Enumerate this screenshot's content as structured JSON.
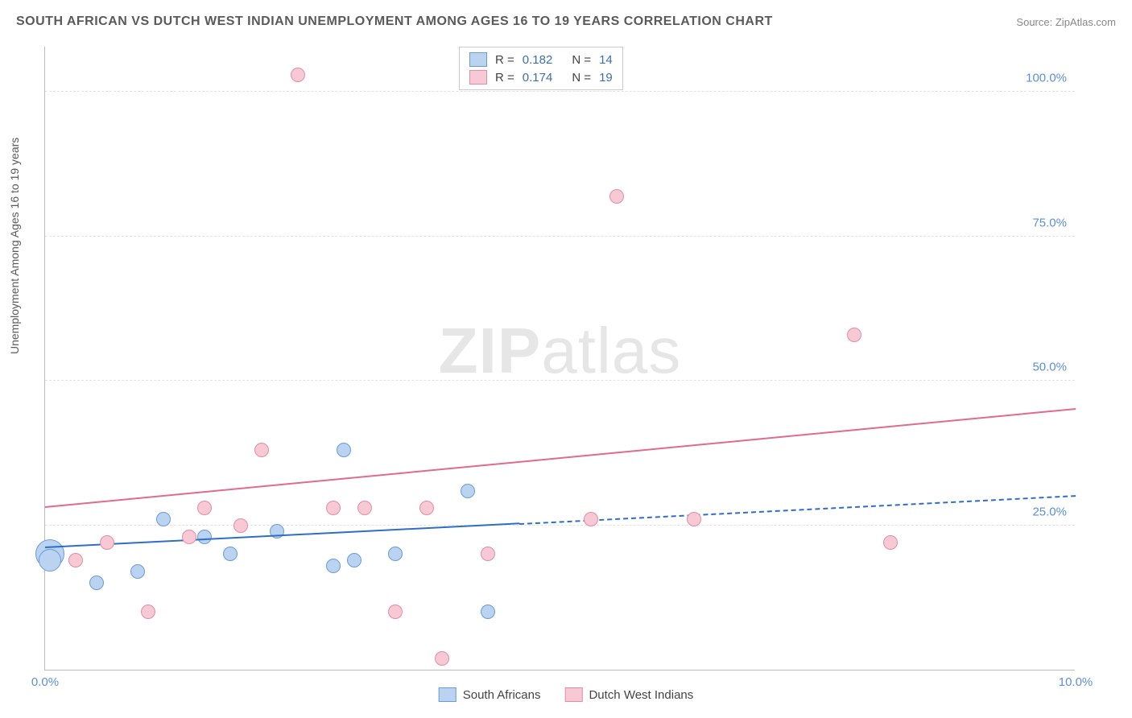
{
  "title": "SOUTH AFRICAN VS DUTCH WEST INDIAN UNEMPLOYMENT AMONG AGES 16 TO 19 YEARS CORRELATION CHART",
  "source": {
    "label": "Source:",
    "site": "ZipAtlas.com"
  },
  "ylabel": "Unemployment Among Ages 16 to 19 years",
  "watermark": {
    "bold": "ZIP",
    "rest": "atlas"
  },
  "chart": {
    "type": "scatter-correlation",
    "xlim": [
      0,
      10
    ],
    "ylim": [
      0,
      108
    ],
    "x_ticks": [
      {
        "v": 0,
        "label": "0.0%"
      },
      {
        "v": 10,
        "label": "10.0%"
      }
    ],
    "y_ticks": [
      {
        "v": 25,
        "label": "25.0%"
      },
      {
        "v": 50,
        "label": "50.0%"
      },
      {
        "v": 75,
        "label": "75.0%"
      },
      {
        "v": 100,
        "label": "100.0%"
      }
    ],
    "grid_color": "#e2e2e2",
    "axis_color": "#bbbbbb",
    "background_color": "#ffffff",
    "tick_label_color": "#5b8fd6",
    "title_color": "#5a5a5a",
    "title_fontsize": 16,
    "label_fontsize": 14,
    "tick_fontsize": 15,
    "watermark_color": "#e6e6e6",
    "watermark_fontsize": 80,
    "default_point_radius": 9,
    "series": [
      {
        "id": "south_africans",
        "label": "South Africans",
        "fill": "#b9d3f0",
        "stroke": "#6a9bd8",
        "trend_color": "#2f6ec4",
        "trend_width": 2.5,
        "trend": {
          "x0": 0,
          "y0": 21,
          "x1": 10,
          "y1": 30,
          "solid_until_x": 4.6
        },
        "R": "0.182",
        "N": "14",
        "points": [
          {
            "x": 0.05,
            "y": 20,
            "r": 18
          },
          {
            "x": 0.05,
            "y": 19,
            "r": 14
          },
          {
            "x": 0.5,
            "y": 15
          },
          {
            "x": 0.9,
            "y": 17
          },
          {
            "x": 1.15,
            "y": 26
          },
          {
            "x": 1.55,
            "y": 23
          },
          {
            "x": 1.8,
            "y": 20
          },
          {
            "x": 2.25,
            "y": 24
          },
          {
            "x": 2.8,
            "y": 18
          },
          {
            "x": 2.9,
            "y": 38
          },
          {
            "x": 3.0,
            "y": 19
          },
          {
            "x": 3.4,
            "y": 20
          },
          {
            "x": 4.1,
            "y": 31
          },
          {
            "x": 4.3,
            "y": 10
          }
        ]
      },
      {
        "id": "dutch_west_indians",
        "label": "Dutch West Indians",
        "fill": "#f6c9d4",
        "stroke": "#e48ca4",
        "trend_color": "#e06b8b",
        "trend_width": 2.5,
        "trend": {
          "x0": 0,
          "y0": 28,
          "x1": 10,
          "y1": 45,
          "solid_until_x": 10
        },
        "R": "0.174",
        "N": "19",
        "points": [
          {
            "x": 0.3,
            "y": 19
          },
          {
            "x": 0.6,
            "y": 22
          },
          {
            "x": 1.0,
            "y": 10
          },
          {
            "x": 1.4,
            "y": 23
          },
          {
            "x": 1.55,
            "y": 28
          },
          {
            "x": 1.9,
            "y": 25
          },
          {
            "x": 2.1,
            "y": 38
          },
          {
            "x": 2.45,
            "y": 103
          },
          {
            "x": 2.8,
            "y": 28
          },
          {
            "x": 3.1,
            "y": 28
          },
          {
            "x": 3.4,
            "y": 10
          },
          {
            "x": 3.7,
            "y": 28
          },
          {
            "x": 3.85,
            "y": 2
          },
          {
            "x": 4.3,
            "y": 20
          },
          {
            "x": 5.3,
            "y": 26
          },
          {
            "x": 5.55,
            "y": 82
          },
          {
            "x": 6.3,
            "y": 26
          },
          {
            "x": 7.85,
            "y": 58
          },
          {
            "x": 8.2,
            "y": 22
          }
        ]
      }
    ]
  },
  "legend_top": {
    "R_label": "R =",
    "N_label": "N ="
  },
  "legend_bottom": {}
}
